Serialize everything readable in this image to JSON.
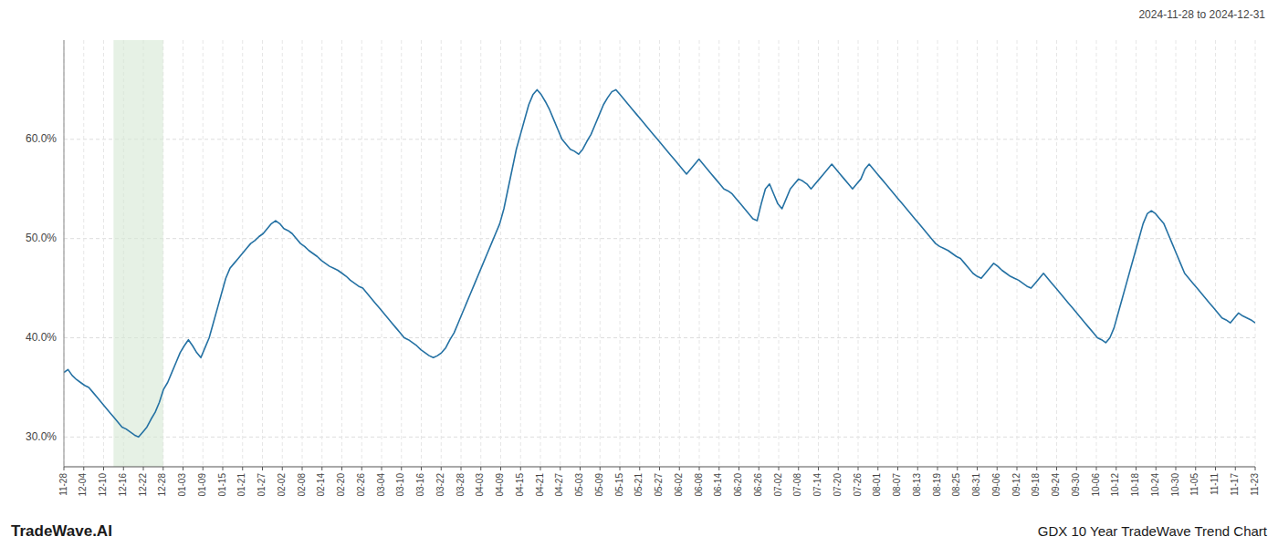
{
  "chart_data": {
    "type": "line",
    "title": "GDX 10 Year TradeWave Trend Chart",
    "subtitle": "2024-11-28 to 2024-12-31",
    "annotations": [
      "TradeWave.AI"
    ],
    "color": "#2471a3",
    "grid": true,
    "highlight": {
      "xstart": 2.5,
      "xend": 5.0,
      "color": "#d5e8d4"
    },
    "xlim": [
      0,
      60
    ],
    "xticks": [
      {
        "value": 0,
        "label": "11-28"
      },
      {
        "value": 1,
        "label": "12-04"
      },
      {
        "value": 2,
        "label": "12-10"
      },
      {
        "value": 3,
        "label": "12-16"
      },
      {
        "value": 4,
        "label": "12-22"
      },
      {
        "value": 5,
        "label": "12-28"
      },
      {
        "value": 6,
        "label": "01-03"
      },
      {
        "value": 7,
        "label": "01-09"
      },
      {
        "value": 8,
        "label": "01-15"
      },
      {
        "value": 9,
        "label": "01-21"
      },
      {
        "value": 10,
        "label": "01-27"
      },
      {
        "value": 11,
        "label": "02-02"
      },
      {
        "value": 12,
        "label": "02-08"
      },
      {
        "value": 13,
        "label": "02-14"
      },
      {
        "value": 14,
        "label": "02-20"
      },
      {
        "value": 15,
        "label": "02-26"
      },
      {
        "value": 16,
        "label": "03-04"
      },
      {
        "value": 17,
        "label": "03-10"
      },
      {
        "value": 18,
        "label": "03-16"
      },
      {
        "value": 19,
        "label": "03-22"
      },
      {
        "value": 20,
        "label": "03-28"
      },
      {
        "value": 21,
        "label": "04-03"
      },
      {
        "value": 22,
        "label": "04-09"
      },
      {
        "value": 23,
        "label": "04-15"
      },
      {
        "value": 24,
        "label": "04-21"
      },
      {
        "value": 25,
        "label": "04-27"
      },
      {
        "value": 26,
        "label": "05-03"
      },
      {
        "value": 27,
        "label": "05-09"
      },
      {
        "value": 28,
        "label": "05-15"
      },
      {
        "value": 29,
        "label": "05-21"
      },
      {
        "value": 30,
        "label": "05-27"
      },
      {
        "value": 31,
        "label": "06-02"
      },
      {
        "value": 32,
        "label": "06-08"
      },
      {
        "value": 33,
        "label": "06-14"
      },
      {
        "value": 34,
        "label": "06-20"
      },
      {
        "value": 35,
        "label": "06-26"
      },
      {
        "value": 36,
        "label": "07-02"
      },
      {
        "value": 37,
        "label": "07-08"
      },
      {
        "value": 38,
        "label": "07-14"
      },
      {
        "value": 39,
        "label": "07-20"
      },
      {
        "value": 40,
        "label": "07-26"
      },
      {
        "value": 41,
        "label": "08-01"
      },
      {
        "value": 42,
        "label": "08-07"
      },
      {
        "value": 43,
        "label": "08-13"
      },
      {
        "value": 44,
        "label": "08-19"
      },
      {
        "value": 45,
        "label": "08-25"
      },
      {
        "value": 46,
        "label": "08-31"
      },
      {
        "value": 47,
        "label": "09-06"
      },
      {
        "value": 48,
        "label": "09-12"
      },
      {
        "value": 49,
        "label": "09-18"
      },
      {
        "value": 50,
        "label": "09-24"
      },
      {
        "value": 51,
        "label": "09-30"
      },
      {
        "value": 52,
        "label": "10-06"
      },
      {
        "value": 53,
        "label": "10-12"
      },
      {
        "value": 54,
        "label": "10-18"
      },
      {
        "value": 55,
        "label": "10-24"
      },
      {
        "value": 56,
        "label": "10-30"
      },
      {
        "value": 57,
        "label": "11-05"
      },
      {
        "value": 58,
        "label": "11-11"
      },
      {
        "value": 59,
        "label": "11-17"
      },
      {
        "value": 60,
        "label": "11-23"
      }
    ],
    "ylim": [
      27,
      70
    ],
    "yticks": [
      {
        "value": 30.0,
        "label": "30.0%"
      },
      {
        "value": 40.0,
        "label": "40.0%"
      },
      {
        "value": 50.0,
        "label": "50.0%"
      },
      {
        "value": 60.0,
        "label": "60.0%"
      }
    ],
    "values": [
      36.5,
      36.8,
      36.2,
      35.8,
      35.5,
      35.2,
      35.0,
      34.5,
      34.0,
      33.5,
      33.0,
      32.5,
      32.0,
      31.5,
      31.0,
      30.8,
      30.5,
      30.2,
      30.0,
      30.5,
      31.0,
      31.8,
      32.5,
      33.5,
      34.8,
      35.5,
      36.5,
      37.5,
      38.5,
      39.2,
      39.8,
      39.2,
      38.5,
      38.0,
      39.0,
      40.0,
      41.5,
      43.0,
      44.5,
      46.0,
      47.0,
      47.5,
      48.0,
      48.5,
      49.0,
      49.5,
      49.8,
      50.2,
      50.5,
      51.0,
      51.5,
      51.8,
      51.5,
      51.0,
      50.8,
      50.5,
      50.0,
      49.5,
      49.2,
      48.8,
      48.5,
      48.2,
      47.8,
      47.5,
      47.2,
      47.0,
      46.8,
      46.5,
      46.2,
      45.8,
      45.5,
      45.2,
      45.0,
      44.5,
      44.0,
      43.5,
      43.0,
      42.5,
      42.0,
      41.5,
      41.0,
      40.5,
      40.0,
      39.8,
      39.5,
      39.2,
      38.8,
      38.5,
      38.2,
      38.0,
      38.2,
      38.5,
      39.0,
      39.8,
      40.5,
      41.5,
      42.5,
      43.5,
      44.5,
      45.5,
      46.5,
      47.5,
      48.5,
      49.5,
      50.5,
      51.5,
      53.0,
      55.0,
      57.0,
      59.0,
      60.5,
      62.0,
      63.5,
      64.5,
      65.0,
      64.5,
      63.8,
      63.0,
      62.0,
      61.0,
      60.0,
      59.5,
      59.0,
      58.8,
      58.5,
      59.0,
      59.8,
      60.5,
      61.5,
      62.5,
      63.5,
      64.2,
      64.8,
      65.0,
      64.5,
      64.0,
      63.5,
      63.0,
      62.5,
      62.0,
      61.5,
      61.0,
      60.5,
      60.0,
      59.5,
      59.0,
      58.5,
      58.0,
      57.5,
      57.0,
      56.5,
      57.0,
      57.5,
      58.0,
      57.5,
      57.0,
      56.5,
      56.0,
      55.5,
      55.0,
      54.8,
      54.5,
      54.0,
      53.5,
      53.0,
      52.5,
      52.0,
      51.8,
      53.5,
      55.0,
      55.5,
      54.5,
      53.5,
      53.0,
      54.0,
      55.0,
      55.5,
      56.0,
      55.8,
      55.5,
      55.0,
      55.5,
      56.0,
      56.5,
      57.0,
      57.5,
      57.0,
      56.5,
      56.0,
      55.5,
      55.0,
      55.5,
      56.0,
      57.0,
      57.5,
      57.0,
      56.5,
      56.0,
      55.5,
      55.0,
      54.5,
      54.0,
      53.5,
      53.0,
      52.5,
      52.0,
      51.5,
      51.0,
      50.5,
      50.0,
      49.5,
      49.2,
      49.0,
      48.8,
      48.5,
      48.2,
      48.0,
      47.5,
      47.0,
      46.5,
      46.2,
      46.0,
      46.5,
      47.0,
      47.5,
      47.2,
      46.8,
      46.5,
      46.2,
      46.0,
      45.8,
      45.5,
      45.2,
      45.0,
      45.5,
      46.0,
      46.5,
      46.0,
      45.5,
      45.0,
      44.5,
      44.0,
      43.5,
      43.0,
      42.5,
      42.0,
      41.5,
      41.0,
      40.5,
      40.0,
      39.8,
      39.5,
      40.0,
      41.0,
      42.5,
      44.0,
      45.5,
      47.0,
      48.5,
      50.0,
      51.5,
      52.5,
      52.8,
      52.5,
      52.0,
      51.5,
      50.5,
      49.5,
      48.5,
      47.5,
      46.5,
      46.0,
      45.5,
      45.0,
      44.5,
      44.0,
      43.5,
      43.0,
      42.5,
      42.0,
      41.8,
      41.5,
      42.0,
      42.5,
      42.2,
      42.0,
      41.8,
      41.5
    ]
  }
}
